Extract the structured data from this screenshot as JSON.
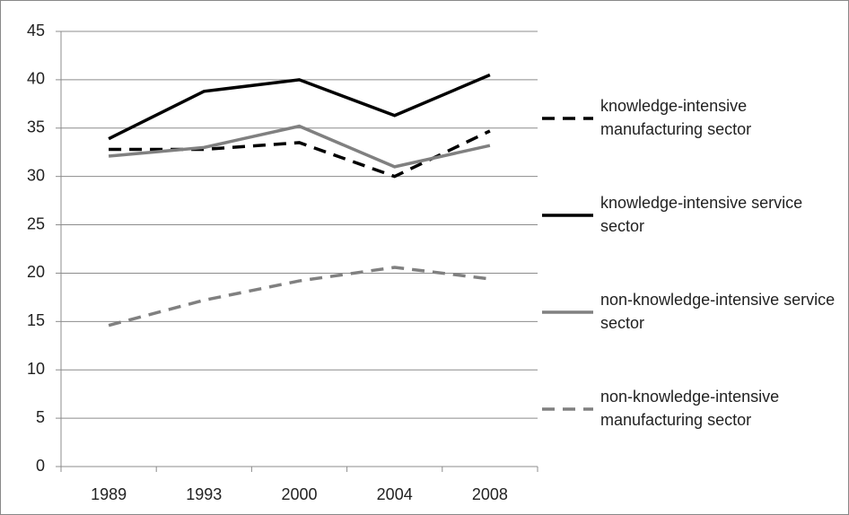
{
  "chart_data": {
    "type": "line",
    "categories": [
      "1989",
      "1993",
      "2000",
      "2004",
      "2008"
    ],
    "series": [
      {
        "name": "knowledge-intensive manufacturing sector",
        "color": "#000000",
        "dashed": true,
        "values": [
          32.8,
          32.8,
          33.5,
          30.0,
          34.7
        ]
      },
      {
        "name": "knowledge-intensive service sector",
        "color": "#000000",
        "dashed": false,
        "values": [
          33.9,
          38.8,
          40.0,
          36.3,
          40.5
        ]
      },
      {
        "name": "non-knowledge-intensive service sector",
        "color": "#808080",
        "dashed": false,
        "values": [
          32.1,
          33.0,
          35.2,
          31.0,
          33.2
        ]
      },
      {
        "name": "non-knowledge-intensive manufacturing sector",
        "color": "#808080",
        "dashed": true,
        "values": [
          14.6,
          17.2,
          19.2,
          20.6,
          19.4
        ]
      }
    ],
    "ylim": [
      0,
      45
    ],
    "yticks": [
      0,
      5,
      10,
      15,
      20,
      25,
      30,
      35,
      40,
      45
    ],
    "grid": true,
    "legend": "right"
  }
}
